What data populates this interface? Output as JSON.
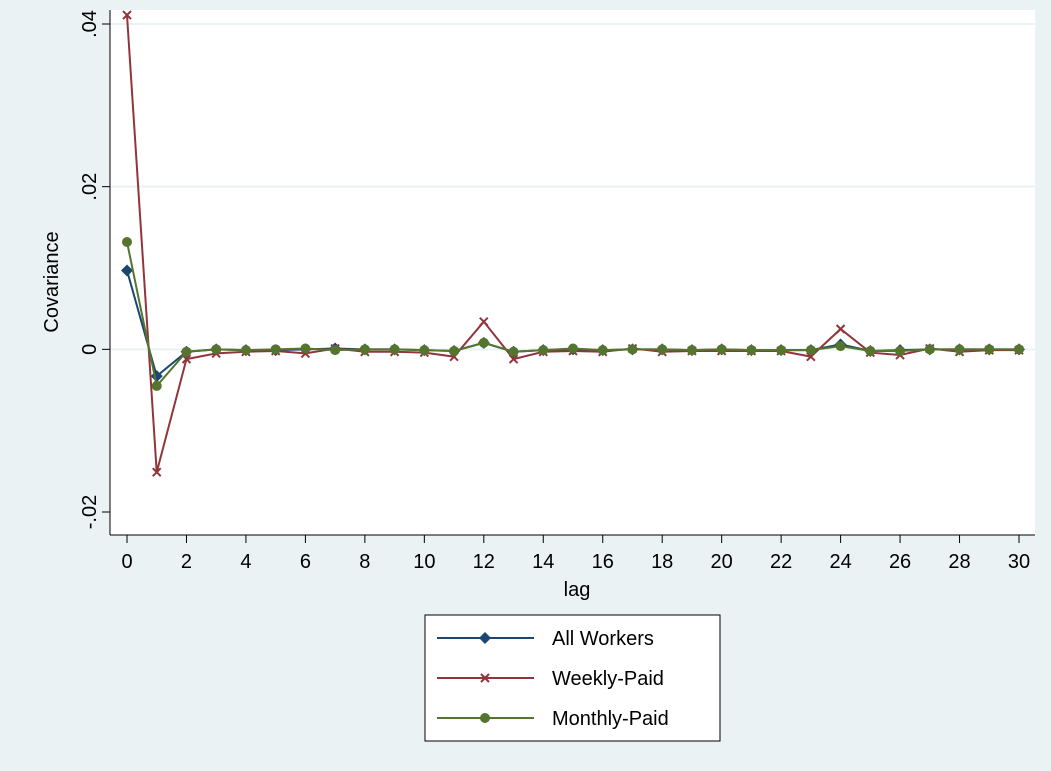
{
  "chart_data": {
    "type": "line",
    "title": "",
    "xlabel": "lag",
    "ylabel": "Covariance",
    "xlim": [
      0,
      30
    ],
    "ylim": [
      -0.02,
      0.04
    ],
    "x_ticks": [
      0,
      2,
      4,
      6,
      8,
      10,
      12,
      14,
      16,
      18,
      20,
      22,
      24,
      26,
      28,
      30
    ],
    "y_ticks": [
      -0.02,
      0,
      0.02,
      0.04
    ],
    "y_tick_labels": [
      "-.02",
      "0",
      ".02",
      ".04"
    ],
    "x_tick_labels": [
      "0",
      "2",
      "4",
      "6",
      "8",
      "10",
      "12",
      "14",
      "16",
      "18",
      "20",
      "22",
      "24",
      "26",
      "28",
      "30"
    ],
    "grid": "horizontal",
    "legend_position": "bottom",
    "x": [
      0,
      1,
      2,
      3,
      4,
      5,
      6,
      7,
      8,
      9,
      10,
      11,
      12,
      13,
      14,
      15,
      16,
      17,
      18,
      19,
      20,
      21,
      22,
      23,
      24,
      25,
      26,
      27,
      28,
      29,
      30
    ],
    "series": [
      {
        "name": "All Workers",
        "color": "#1a476f",
        "marker": "diamond",
        "values": [
          0.0097,
          -0.0033,
          -0.0003,
          0.0,
          -0.0001,
          -0.0001,
          0.0,
          0.0001,
          0.0,
          0.0,
          -0.0001,
          -0.0002,
          0.0008,
          -0.0003,
          -0.0001,
          0.0,
          -0.0001,
          0.0,
          0.0,
          -0.0001,
          0.0,
          -0.0001,
          -0.0001,
          -0.0001,
          0.0006,
          -0.0002,
          -0.0001,
          0.0,
          0.0,
          0.0,
          0.0
        ]
      },
      {
        "name": "Weekly-Paid",
        "color": "#90353b",
        "marker": "x",
        "values": [
          0.0411,
          -0.0151,
          -0.0012,
          -0.0005,
          -0.0003,
          -0.0002,
          -0.0005,
          0.0001,
          -0.0003,
          -0.0003,
          -0.0004,
          -0.0009,
          0.0034,
          -0.0012,
          -0.0003,
          -0.0002,
          -0.0003,
          0.0001,
          -0.0003,
          -0.0002,
          -0.0002,
          -0.0002,
          -0.0002,
          -0.0009,
          0.0025,
          -0.0004,
          -0.0007,
          0.0001,
          -0.0003,
          -0.0001,
          -0.0001
        ]
      },
      {
        "name": "Monthly-Paid",
        "color": "#55752f",
        "marker": "circle",
        "values": [
          0.0132,
          -0.0045,
          -0.0003,
          0.0,
          -0.0001,
          0.0,
          0.0001,
          -0.0001,
          0.0,
          0.0,
          -0.0001,
          -0.0002,
          0.0008,
          -0.0003,
          -0.0001,
          0.0001,
          -0.0001,
          0.0,
          0.0,
          -0.0001,
          0.0,
          -0.0001,
          -0.0001,
          -0.0001,
          0.0004,
          -0.0002,
          -0.0002,
          0.0,
          0.0,
          0.0,
          0.0
        ]
      }
    ]
  }
}
